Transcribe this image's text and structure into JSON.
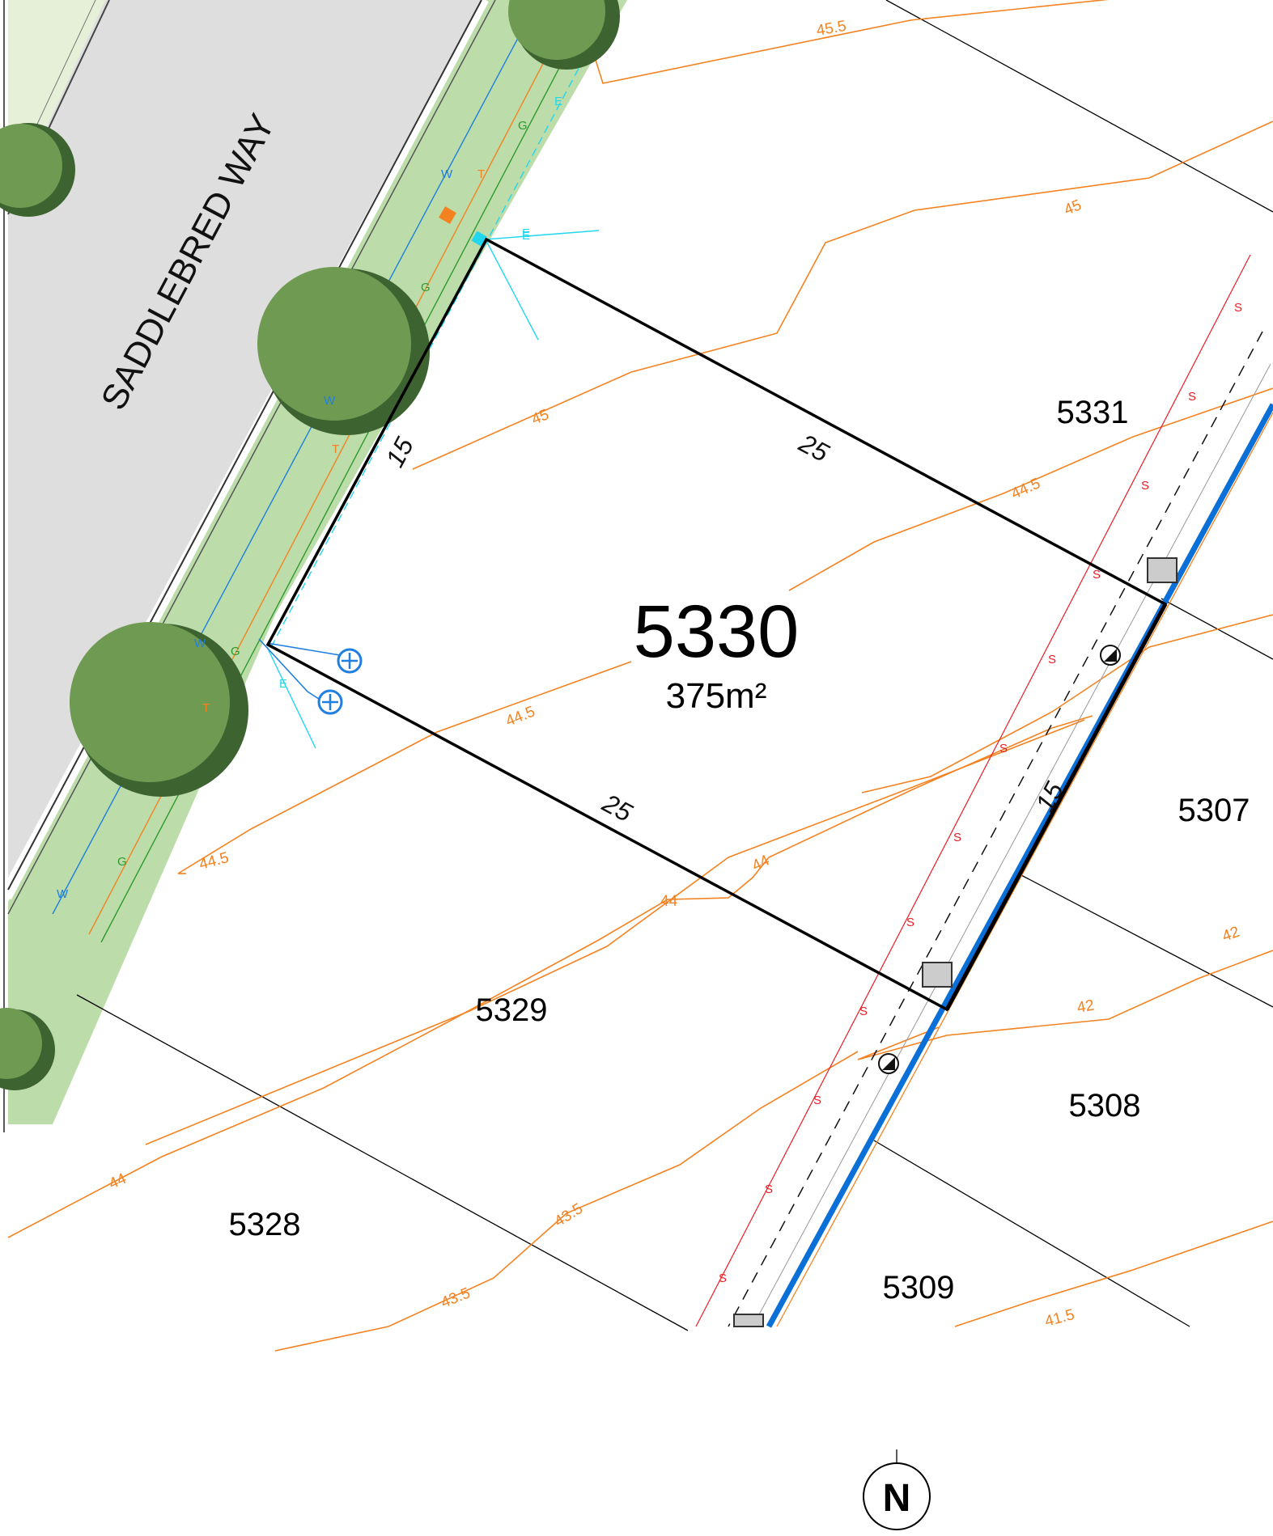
{
  "street": {
    "name": "SADDLEBRED WAY"
  },
  "main_lot": {
    "number": "5330",
    "area": "375m²"
  },
  "neighbour_lots": [
    "5331",
    "5307",
    "5308",
    "5309",
    "5329",
    "5328"
  ],
  "dimensions": {
    "top": "25",
    "bottom": "25",
    "left": "15",
    "right": "15"
  },
  "contours": {
    "c45_5": "45.5",
    "c45_a": "45",
    "c45_b": "45",
    "c44_5_a": "44.5",
    "c44_5_b": "44.5",
    "c44_5_c": "44.5",
    "c44_a": "44",
    "c44_b": "44",
    "c44_c": "44",
    "c43_5_a": "43.5",
    "c43_5_b": "43.5",
    "c42_a": "42",
    "c42_b": "42",
    "c41_5": "41.5"
  },
  "service_codes": {
    "water": "W",
    "telecom": "T",
    "gas": "G",
    "electric": "E",
    "sewer": "S"
  },
  "north_arrow": {
    "label": "N"
  },
  "colors": {
    "lot_boundary": "#000000",
    "contour": "#f58220",
    "verge": "#bcdcaa",
    "road": "#dedede",
    "water": "#1f7fe0",
    "telecom": "#f58220",
    "gas": "#2e9a2e",
    "electric": "#22d6ee",
    "sewer": "#ec1c24",
    "drain": "#0a6fd6",
    "tree_canopy": "#6f9a52",
    "tree_shadow": "#3d6330"
  }
}
